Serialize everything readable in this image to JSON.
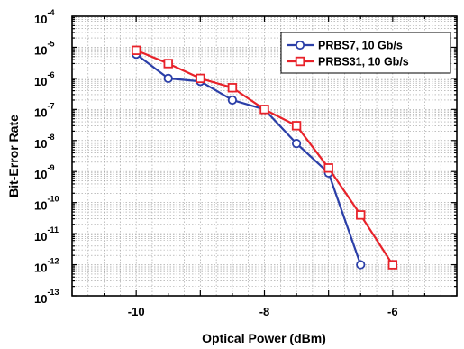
{
  "chart_data": {
    "type": "line",
    "xlabel": "Optical Power (dBm)",
    "ylabel": "Bit-Error Rate",
    "xlim": [
      -11,
      -5
    ],
    "ylim_exponent": [
      -13,
      -4
    ],
    "yscale": "log",
    "grid": "dotted",
    "legend_position": "top-right",
    "x_ticks": [
      {
        "value": -10,
        "label": "-10"
      },
      {
        "value": -8,
        "label": "-8"
      },
      {
        "value": -6,
        "label": "-6"
      }
    ],
    "y_ticks": [
      {
        "exp": -4,
        "base": "10",
        "power": "-4"
      },
      {
        "exp": -5,
        "base": "10",
        "power": "-5"
      },
      {
        "exp": -6,
        "base": "10",
        "power": "-6"
      },
      {
        "exp": -7,
        "base": "10",
        "power": "-7"
      },
      {
        "exp": -8,
        "base": "10",
        "power": "-8"
      },
      {
        "exp": -9,
        "base": "10",
        "power": "-9"
      },
      {
        "exp": -10,
        "base": "10",
        "power": "-10"
      },
      {
        "exp": -11,
        "base": "10",
        "power": "-11"
      },
      {
        "exp": -12,
        "base": "10",
        "power": "-12"
      },
      {
        "exp": -13,
        "base": "10",
        "power": "-13"
      }
    ],
    "series": [
      {
        "name": "PRBS7, 10 Gb/s",
        "color": "#2b3fa8",
        "marker": "circle",
        "x": [
          -10,
          -9.5,
          -9,
          -8.5,
          -8,
          -7.5,
          -7,
          -6.5
        ],
        "y": [
          6e-06,
          1e-06,
          8e-07,
          2e-07,
          1e-07,
          8e-09,
          9e-10,
          1e-12
        ]
      },
      {
        "name": "PRBS31, 10 Gb/s",
        "color": "#e8222a",
        "marker": "square",
        "x": [
          -10,
          -9.5,
          -9,
          -8.5,
          -8,
          -7.5,
          -7,
          -6.5,
          -6
        ],
        "y": [
          8e-06,
          3e-06,
          1e-06,
          5e-07,
          1e-07,
          3e-08,
          1.3e-09,
          4e-11,
          1e-12
        ]
      }
    ]
  }
}
